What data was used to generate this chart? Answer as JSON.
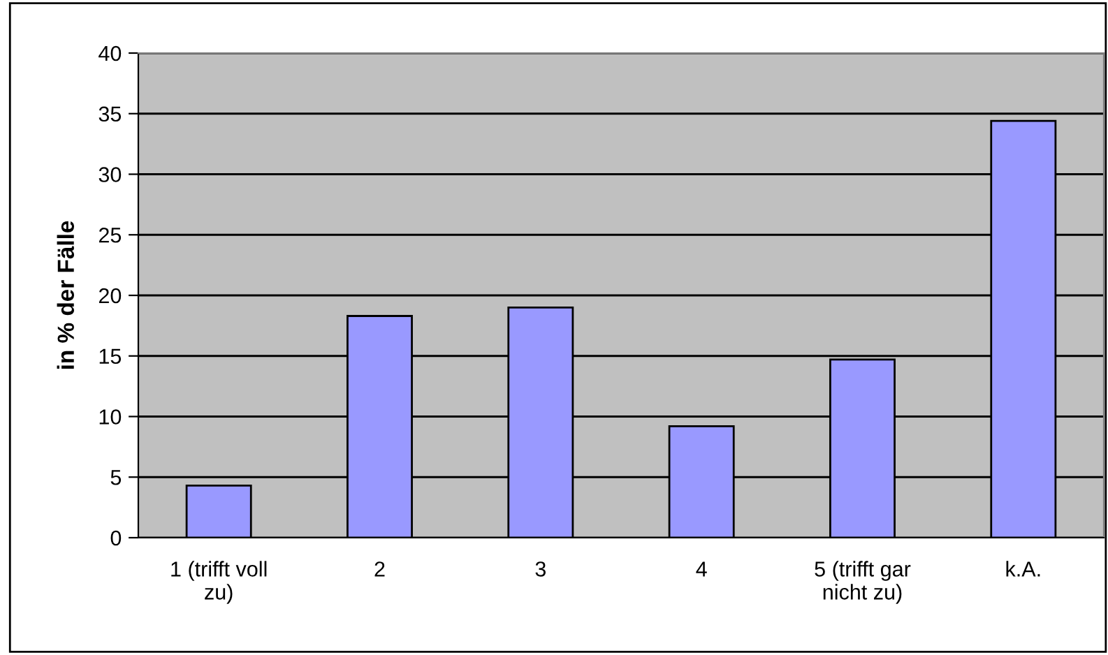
{
  "chart_data": {
    "type": "bar",
    "ylabel": "in % der Fälle",
    "categories": [
      "1 (trifft voll\nzu)",
      "2",
      "3",
      "4",
      "5 (trifft gar\nnicht zu)",
      "k.A."
    ],
    "values": [
      4.3,
      18.3,
      19.0,
      9.2,
      14.7,
      34.4
    ],
    "color": "#9999ff",
    "ylim": [
      0,
      40
    ],
    "yticks": [
      0,
      5,
      10,
      15,
      20,
      25,
      30,
      35,
      40
    ],
    "grid": "y",
    "legend": false
  }
}
